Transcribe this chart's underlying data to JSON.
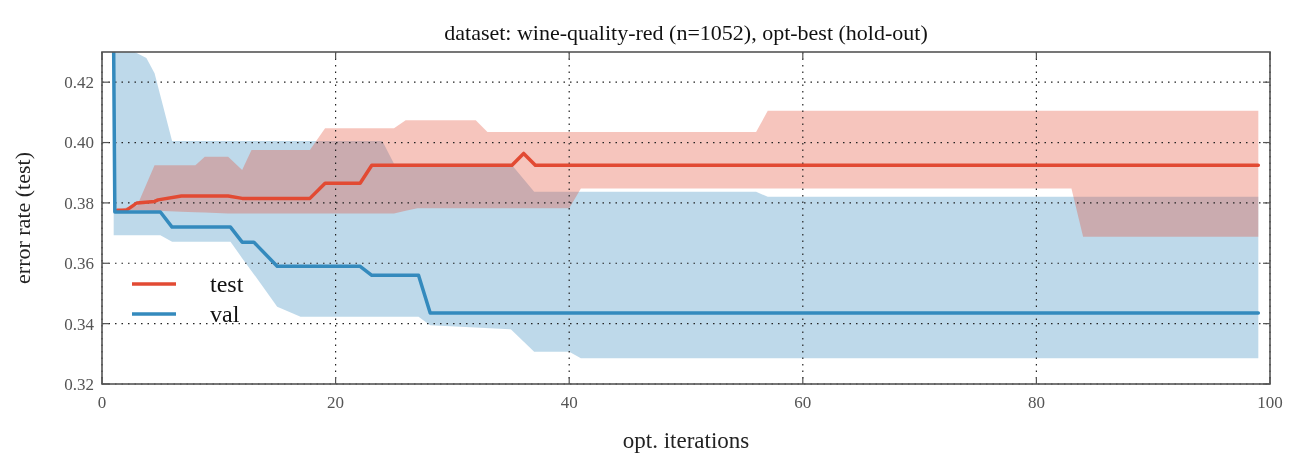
{
  "chart_data": {
    "type": "line",
    "title": "dataset: wine-quality-red (n=1052), opt-best (hold-out)",
    "xlabel": "opt. iterations",
    "ylabel": "error rate (test)",
    "xlim": [
      0,
      100
    ],
    "xticks": [
      0,
      20,
      40,
      60,
      80,
      100
    ],
    "ylim": [
      0.32,
      0.43
    ],
    "yticks": [
      0.32,
      0.34,
      0.36,
      0.38,
      {
        "value": 0.4,
        "label": "0.40"
      },
      0.42
    ],
    "grid": true,
    "legend": "bottom left",
    "line_style": "solid",
    "marker": "none",
    "series": [
      {
        "name": "test",
        "color": "#e24a33",
        "x": [
          1.3,
          2.1,
          3,
          4.5,
          4.8,
          6.8,
          8,
          8.8,
          10.8,
          12,
          12.8,
          17.8,
          19.1,
          22.1,
          23.1,
          25,
          26,
          27,
          32,
          33,
          35.1,
          36.1,
          37.1,
          40,
          41,
          56,
          57,
          83,
          84,
          99
        ],
        "values": [
          0.3776,
          0.3776,
          0.38,
          0.3805,
          0.381,
          0.3823,
          0.3823,
          0.3823,
          0.3823,
          0.3815,
          0.3815,
          0.3815,
          0.3865,
          0.3865,
          0.3925,
          0.3925,
          0.3925,
          0.3925,
          0.3925,
          0.3925,
          0.3925,
          0.3964,
          0.3925,
          0.3925,
          0.3925,
          0.3925,
          0.3925,
          0.3925,
          0.3925,
          0.3925
        ],
        "lower": [
          0.3776,
          0.3776,
          0.3776,
          0.3774,
          0.3774,
          0.3771,
          0.3769,
          0.3768,
          0.3765,
          0.3765,
          0.3765,
          0.3765,
          0.3765,
          0.3765,
          0.3765,
          0.3765,
          0.3774,
          0.3782,
          0.3782,
          0.3782,
          0.3782,
          0.3782,
          0.3782,
          0.3782,
          0.3848,
          0.3848,
          0.3848,
          0.3848,
          0.3688,
          0.3688
        ],
        "upper": [
          0.3776,
          0.3785,
          0.379,
          0.3925,
          0.3925,
          0.3925,
          0.3925,
          0.3953,
          0.3953,
          0.3909,
          0.3975,
          0.3975,
          0.4047,
          0.4047,
          0.4047,
          0.4047,
          0.4074,
          0.4074,
          0.4074,
          0.4035,
          0.4035,
          0.4035,
          0.4035,
          0.4035,
          0.4035,
          0.4035,
          0.4105,
          0.4105,
          0.4105,
          0.4105
        ]
      },
      {
        "name": "val",
        "color": "#348abd",
        "x": [
          1,
          1.1,
          2.8,
          3.8,
          4.5,
          5,
          6,
          11,
          12,
          13,
          15,
          17,
          22.1,
          23.1,
          24,
          25,
          27.1,
          28.1,
          35,
          37,
          40,
          41,
          56,
          57,
          99
        ],
        "values": [
          0.43,
          0.377,
          0.377,
          0.377,
          0.377,
          0.377,
          0.372,
          0.372,
          0.367,
          0.367,
          0.359,
          0.359,
          0.359,
          0.356,
          0.356,
          0.356,
          0.356,
          0.3435,
          0.3435,
          0.3435,
          0.3435,
          0.3435,
          0.3435,
          0.3435,
          0.3435
        ],
        "lower": [
          0.3693,
          0.3693,
          0.3693,
          0.3693,
          0.3693,
          0.3693,
          0.3671,
          0.3671,
          0.3617,
          0.3564,
          0.3456,
          0.3423,
          0.3423,
          0.3423,
          0.3423,
          0.3423,
          0.3423,
          0.3395,
          0.3381,
          0.3307,
          0.3307,
          0.3285,
          0.3285,
          0.3285,
          0.3285
        ],
        "upper": [
          0.43,
          0.43,
          0.43,
          0.428,
          0.423,
          0.4155,
          0.4005,
          0.4005,
          0.4005,
          0.4005,
          0.4005,
          0.4005,
          0.4005,
          0.4005,
          0.4005,
          0.393,
          0.393,
          0.393,
          0.393,
          0.3837,
          0.3837,
          0.3837,
          0.3837,
          0.382,
          0.382
        ]
      }
    ]
  }
}
